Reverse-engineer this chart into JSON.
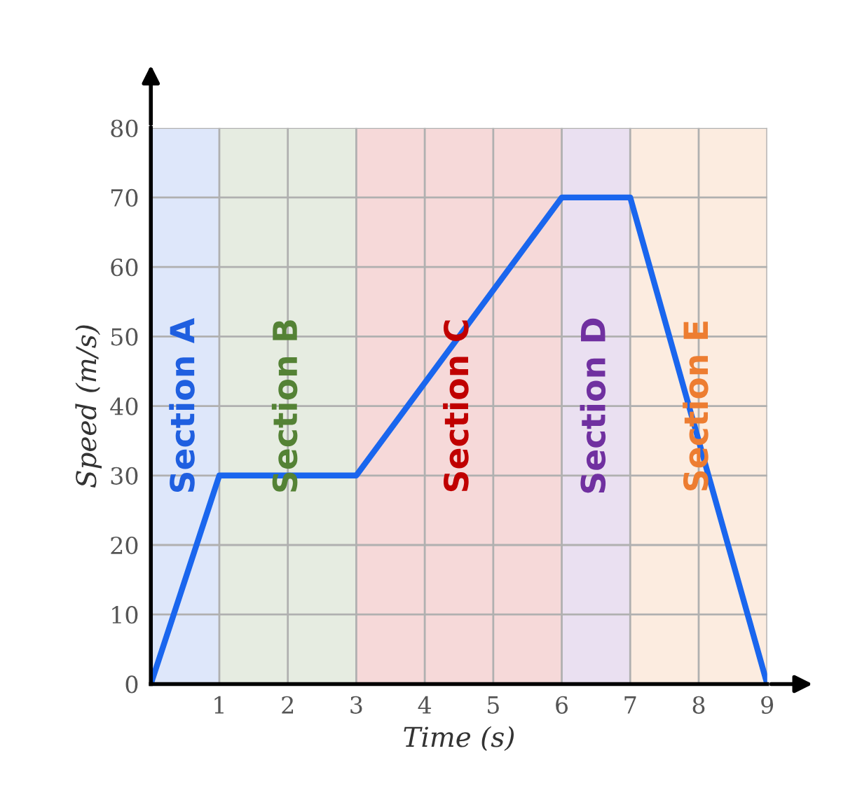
{
  "chart_data": {
    "type": "line",
    "xlabel": "Time (s)",
    "ylabel": "Speed (m/s)",
    "x": [
      0,
      1,
      3,
      6,
      7,
      9
    ],
    "series": [
      {
        "color": "#1a66ee",
        "values": [
          0,
          30,
          30,
          70,
          70,
          0
        ]
      }
    ],
    "xlim": [
      0,
      9
    ],
    "ylim": [
      0,
      80
    ],
    "xticks": [
      1,
      2,
      3,
      4,
      5,
      6,
      7,
      8,
      9
    ],
    "yticks": [
      0,
      10,
      20,
      30,
      40,
      50,
      60,
      70,
      80
    ],
    "grid": true,
    "marker": "none",
    "line_style": "solid",
    "bands": [
      {
        "axis": "x",
        "from": 0,
        "to": 1,
        "label": "Section A",
        "color": "#1f5fe0"
      },
      {
        "axis": "x",
        "from": 1,
        "to": 3,
        "label": "Section B",
        "color": "#548235"
      },
      {
        "axis": "x",
        "from": 3,
        "to": 6,
        "label": "Section C",
        "color": "#c00000"
      },
      {
        "axis": "x",
        "from": 6,
        "to": 7,
        "label": "Section D",
        "color": "#7030a0"
      },
      {
        "axis": "x",
        "from": 7,
        "to": 9,
        "label": "Section E",
        "color": "#ed7d31"
      }
    ]
  }
}
